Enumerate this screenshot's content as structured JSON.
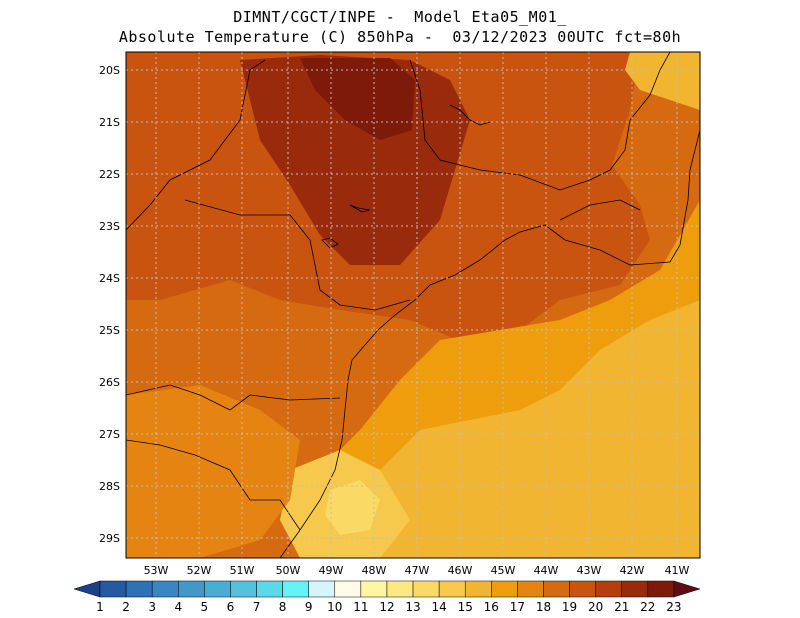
{
  "title_line1": "DIMNT/CGCT/INPE -  Model Eta05_M01_",
  "title_line2": "Absolute Temperature (C) 850hPa -  03/12/2023 00UTC fct=80h",
  "lon_ticks": [
    "53W",
    "52W",
    "51W",
    "50W",
    "49W",
    "48W",
    "47W",
    "46W",
    "45W",
    "44W",
    "43W",
    "42W",
    "41W"
  ],
  "lat_ticks": [
    "20S",
    "21S",
    "22S",
    "23S",
    "24S",
    "25S",
    "26S",
    "27S",
    "28S",
    "29S"
  ],
  "colorbar": {
    "labels": [
      "1",
      "2",
      "3",
      "4",
      "5",
      "6",
      "7",
      "8",
      "9",
      "10",
      "11",
      "12",
      "13",
      "14",
      "15",
      "16",
      "17",
      "18",
      "19",
      "20",
      "21",
      "22",
      "23"
    ],
    "colors": [
      "#1c3f8c",
      "#255aa2",
      "#2e71b6",
      "#3986c2",
      "#4299c8",
      "#4aaed2",
      "#52c2dd",
      "#5ad9e8",
      "#63f2f7",
      "#d4f6fb",
      "#fffbe8",
      "#fff5a3",
      "#fee882",
      "#fbd965",
      "#f6c84c",
      "#f2b531",
      "#ee9d0d",
      "#e58410",
      "#d66a10",
      "#c85410",
      "#b63e0e",
      "#9a2a0c",
      "#7e1a0a",
      "#5e0d15"
    ]
  },
  "regions": [
    {
      "name": "base",
      "color": "#d66a10"
    },
    {
      "name": "warm-north",
      "color": "#c85410"
    },
    {
      "name": "hot-core",
      "color": "#9a2a0c"
    },
    {
      "name": "hot-core-inner",
      "color": "#7e1a0a"
    },
    {
      "name": "cool-southeast",
      "color": "#ee9d0d"
    },
    {
      "name": "cooler-southeast",
      "color": "#f2b531"
    },
    {
      "name": "coast-pale",
      "color": "#f6c84c"
    },
    {
      "name": "coast-cream",
      "color": "#fbd965"
    },
    {
      "name": "northeast-yellow",
      "color": "#f2b531"
    },
    {
      "name": "southwest-orange",
      "color": "#e58410"
    }
  ]
}
